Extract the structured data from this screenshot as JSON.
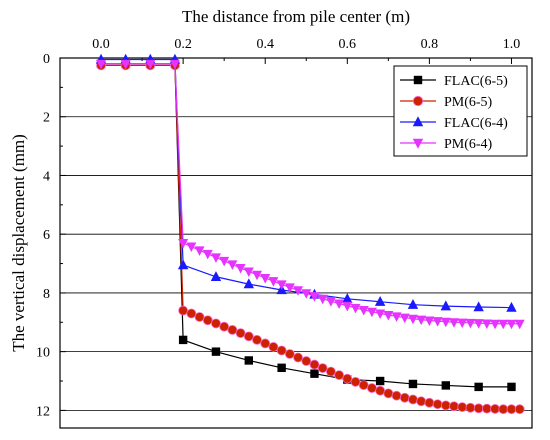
{
  "chart_data": {
    "type": "line",
    "title": "",
    "xlabel": "The distance from pile center (m)",
    "ylabel": "The vertical displacement (mm)",
    "x_axis_position": "top",
    "y_axis_inverted": true,
    "xlim": [
      -0.1,
      1.05
    ],
    "ylim": [
      0,
      12.6
    ],
    "x_ticks": [
      0.0,
      0.2,
      0.4,
      0.6,
      0.8,
      1.0
    ],
    "x_tick_labels": [
      "0.0",
      "0.2",
      "0.4",
      "0.6",
      "0.8",
      "1.0"
    ],
    "y_ticks": [
      0,
      2,
      4,
      6,
      8,
      10,
      12
    ],
    "y_tick_labels": [
      "0",
      "2",
      "4",
      "6",
      "8",
      "10",
      "12"
    ],
    "grid": "horizontal",
    "legend_position": "top-right",
    "series": [
      {
        "name": "FLAC(6-5)",
        "color": "#000000",
        "marker": "square",
        "x": [
          0.0,
          0.06,
          0.12,
          0.18,
          0.2,
          0.28,
          0.36,
          0.44,
          0.52,
          0.6,
          0.68,
          0.76,
          0.84,
          0.92,
          1.0
        ],
        "y": [
          0.2,
          0.2,
          0.2,
          0.2,
          9.6,
          10.0,
          10.3,
          10.55,
          10.75,
          10.95,
          11.0,
          11.1,
          11.15,
          11.2,
          11.2
        ]
      },
      {
        "name": "PM(6-5)",
        "color": "#cc2200",
        "marker": "circle",
        "x": [
          0.0,
          0.06,
          0.12,
          0.18,
          0.2,
          0.22,
          0.24,
          0.26,
          0.28,
          0.3,
          0.32,
          0.34,
          0.36,
          0.38,
          0.4,
          0.42,
          0.44,
          0.46,
          0.48,
          0.5,
          0.52,
          0.54,
          0.56,
          0.58,
          0.6,
          0.62,
          0.64,
          0.66,
          0.68,
          0.7,
          0.72,
          0.74,
          0.76,
          0.78,
          0.8,
          0.82,
          0.84,
          0.86,
          0.88,
          0.9,
          0.92,
          0.94,
          0.96,
          0.98,
          1.0,
          1.02
        ],
        "y": [
          0.25,
          0.25,
          0.25,
          0.25,
          8.6,
          8.7,
          8.82,
          8.93,
          9.04,
          9.15,
          9.26,
          9.37,
          9.48,
          9.6,
          9.72,
          9.84,
          9.96,
          10.08,
          10.2,
          10.32,
          10.44,
          10.56,
          10.68,
          10.8,
          10.92,
          11.03,
          11.14,
          11.24,
          11.33,
          11.42,
          11.5,
          11.57,
          11.63,
          11.69,
          11.74,
          11.79,
          11.83,
          11.86,
          11.89,
          11.91,
          11.93,
          11.94,
          11.95,
          11.96,
          11.96,
          11.96
        ]
      },
      {
        "name": "FLAC(6-4)",
        "color": "#1a1aff",
        "marker": "triangle-up",
        "x": [
          0.0,
          0.06,
          0.12,
          0.18,
          0.2,
          0.28,
          0.36,
          0.44,
          0.52,
          0.6,
          0.68,
          0.76,
          0.84,
          0.92,
          1.0
        ],
        "y": [
          0.05,
          0.05,
          0.05,
          0.05,
          7.05,
          7.45,
          7.7,
          7.9,
          8.05,
          8.2,
          8.3,
          8.4,
          8.45,
          8.48,
          8.5
        ]
      },
      {
        "name": "PM(6-4)",
        "color": "#e633ff",
        "marker": "triangle-down",
        "x": [
          0.0,
          0.06,
          0.12,
          0.18,
          0.2,
          0.22,
          0.24,
          0.26,
          0.28,
          0.3,
          0.32,
          0.34,
          0.36,
          0.38,
          0.4,
          0.42,
          0.44,
          0.46,
          0.48,
          0.5,
          0.52,
          0.54,
          0.56,
          0.58,
          0.6,
          0.62,
          0.64,
          0.66,
          0.68,
          0.7,
          0.72,
          0.74,
          0.76,
          0.78,
          0.8,
          0.82,
          0.84,
          0.86,
          0.88,
          0.9,
          0.92,
          0.94,
          0.96,
          0.98,
          1.0,
          1.02
        ],
        "y": [
          0.2,
          0.2,
          0.2,
          0.2,
          6.3,
          6.42,
          6.55,
          6.67,
          6.79,
          6.91,
          7.03,
          7.15,
          7.27,
          7.38,
          7.49,
          7.6,
          7.71,
          7.81,
          7.91,
          8.01,
          8.11,
          8.2,
          8.28,
          8.36,
          8.44,
          8.51,
          8.58,
          8.64,
          8.7,
          8.75,
          8.8,
          8.84,
          8.88,
          8.91,
          8.94,
          8.96,
          8.98,
          9.0,
          9.01,
          9.02,
          9.03,
          9.04,
          9.05,
          9.05,
          9.05,
          9.05
        ]
      }
    ]
  }
}
